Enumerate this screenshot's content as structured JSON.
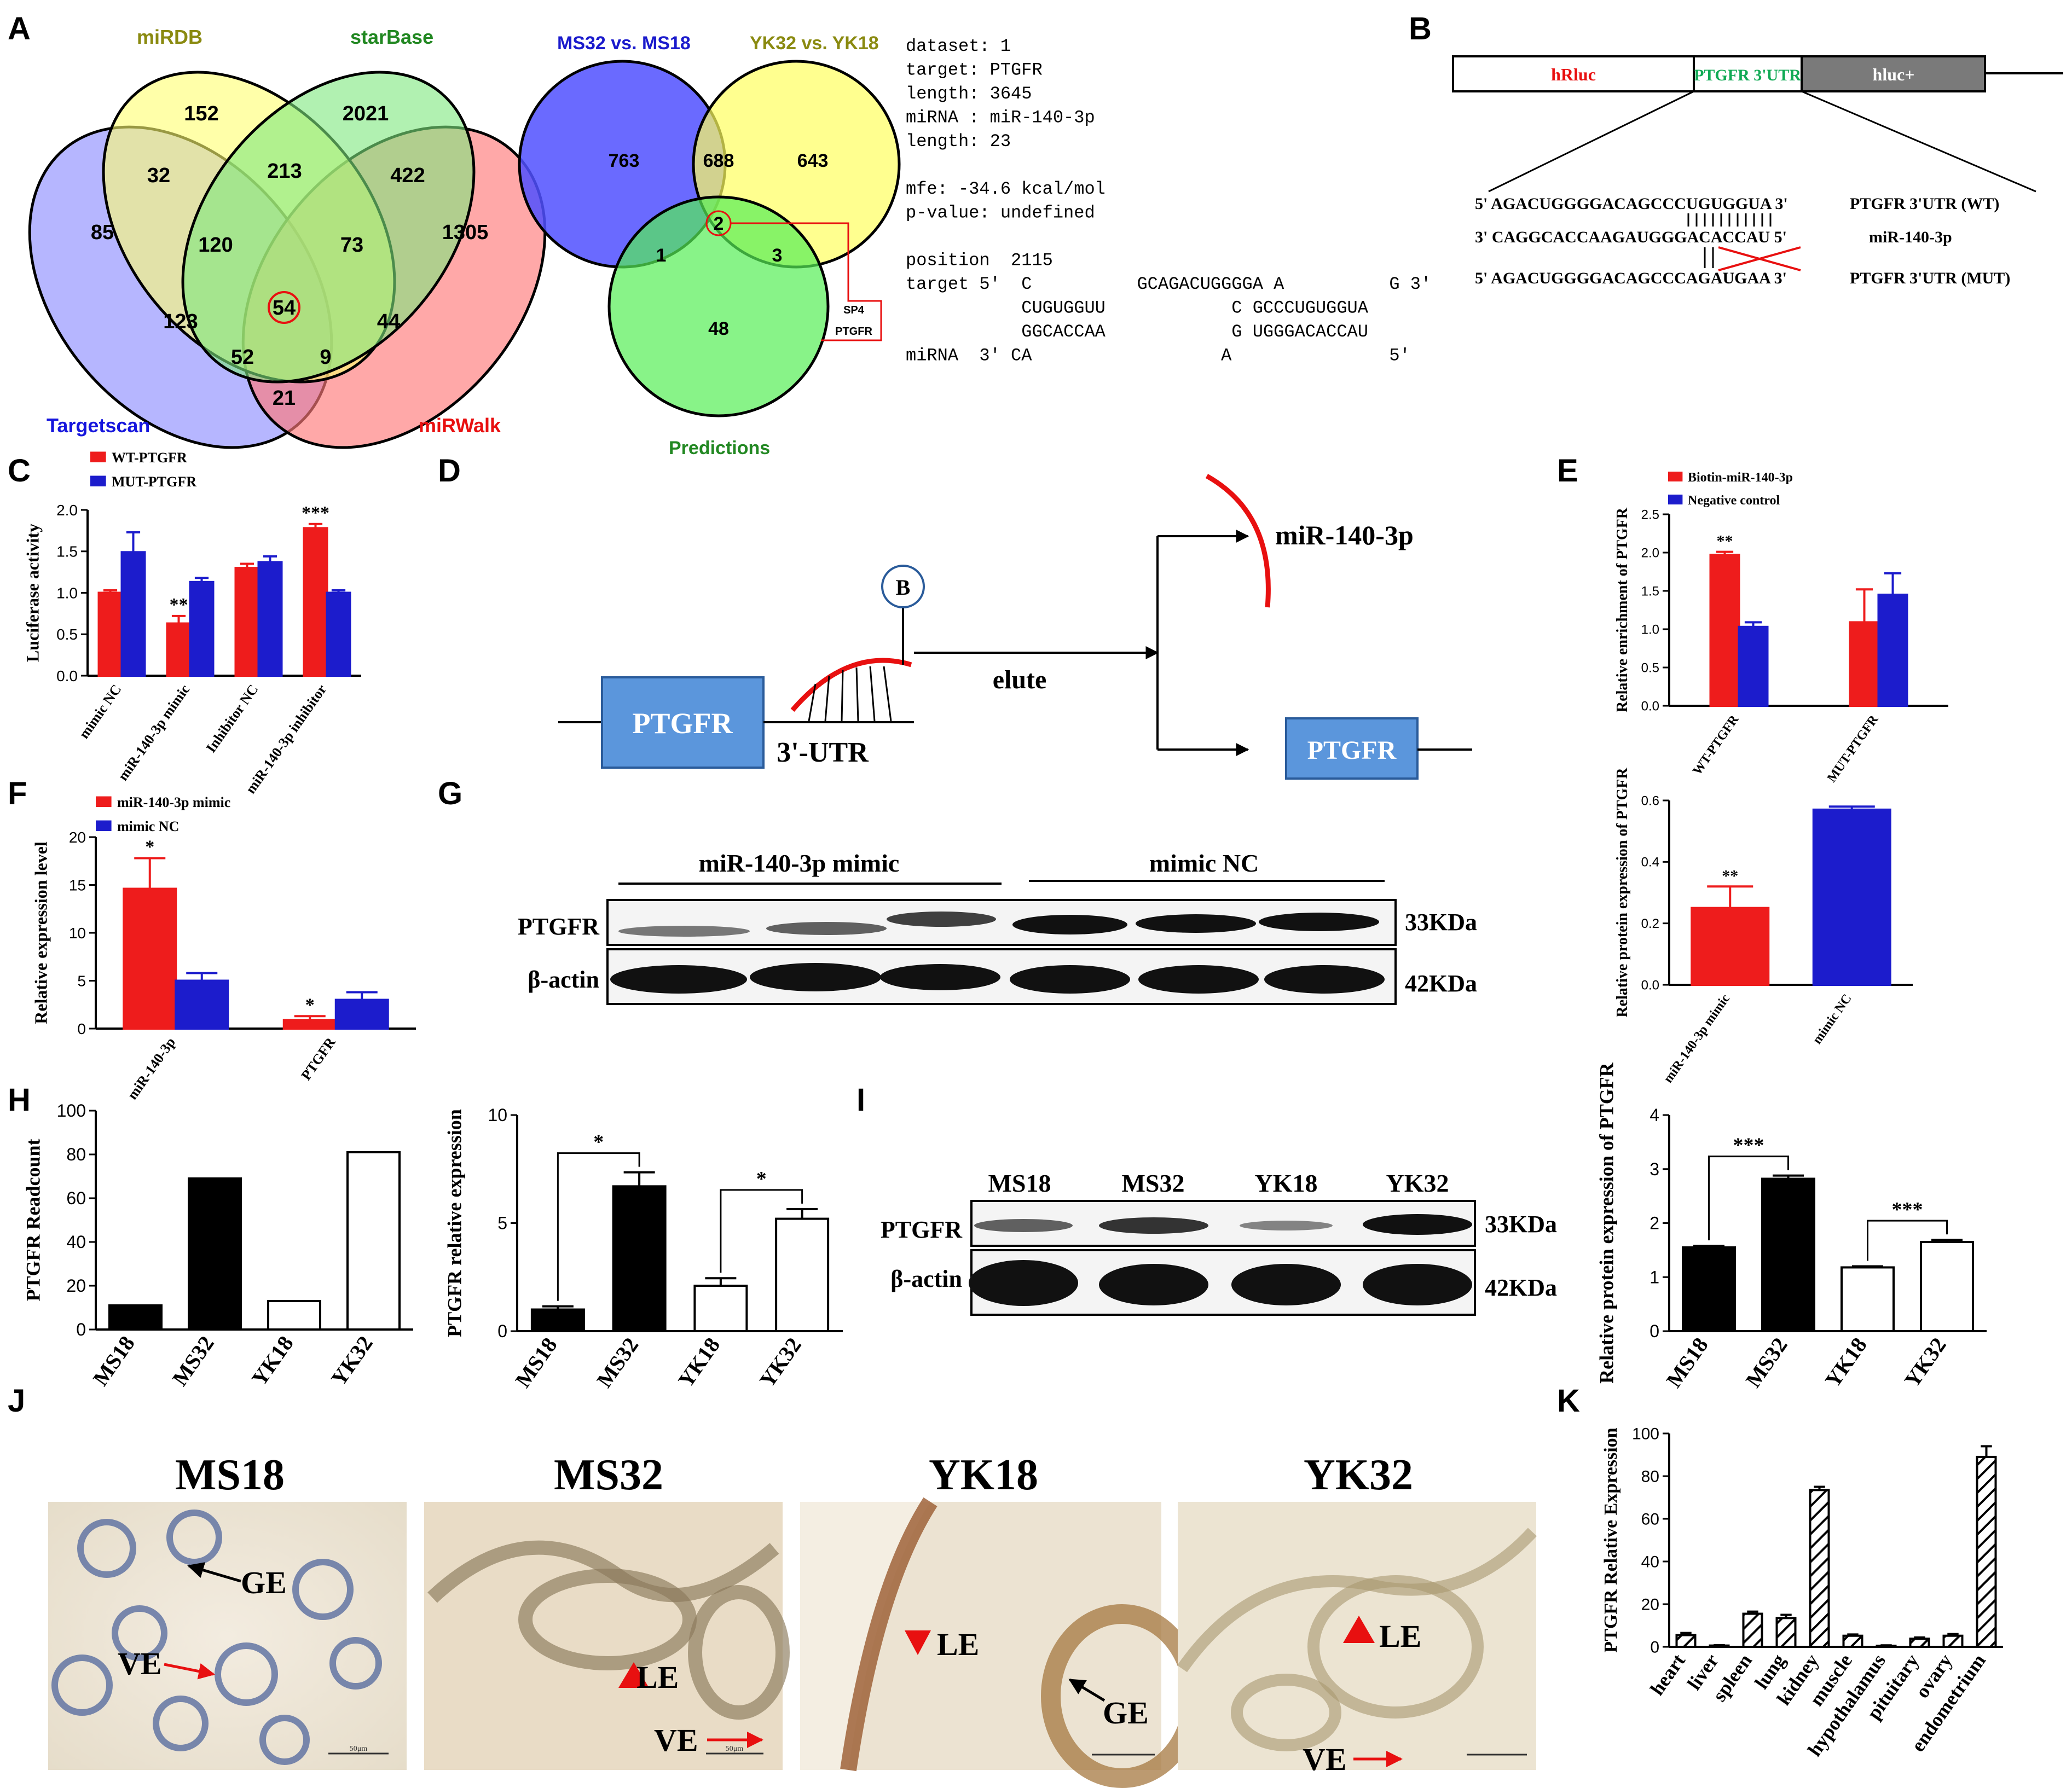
{
  "panels": {
    "A": "A",
    "B": "B",
    "C": "C",
    "D": "D",
    "E": "E",
    "F": "F",
    "G": "G",
    "H": "H",
    "I": "I",
    "J": "J",
    "K": "K"
  },
  "venn4": {
    "sets": [
      "miRDB",
      "starBase",
      "Targetscan",
      "miRWalk"
    ],
    "set_colors": [
      "#ffff99",
      "#99ee99",
      "#9999ff",
      "#ff8888"
    ],
    "counts": {
      "targetscan_only": "85",
      "mirdb_only": "152",
      "starbase_only": "2021",
      "mirwalk_only": "1305",
      "ts_mirdb": "32",
      "mirdb_sb": "213",
      "sb_mw": "422",
      "ts_mirdb_sb": "120",
      "mirdb_sb_mw": "73",
      "ts_sb": "123",
      "all": "54",
      "mirdb_mw": "44",
      "ts_mirdb_mw": "52",
      "ts_sb_mw": "9",
      "ts_mw": "21"
    }
  },
  "venn3": {
    "sets": [
      "MS32 vs. MS18",
      "YK32 vs. YK18",
      "Predictions"
    ],
    "counts": {
      "ms_only": "763",
      "ms_yk": "688",
      "yk_only": "643",
      "ms_pred": "1",
      "all": "2",
      "yk_pred": "3",
      "pred_only": "48"
    },
    "callout": [
      "SP4",
      "PTGFR"
    ]
  },
  "rnahybrid": {
    "lines": [
      "dataset: 1",
      "target: PTGFR",
      "length: 3645",
      "miRNA : miR-140-3p",
      "length: 23",
      "",
      "mfe: -34.6 kcal/mol",
      "p-value: undefined",
      "",
      "position  2115",
      "target 5'  C          GCAGACUGGGGA A          G 3'",
      "           CUGUGGUU            C GCCCUGUGGUA",
      "           GGCACCAA            G UGGGACACCAU",
      "miRNA  3' CA                  A               5'"
    ]
  },
  "construct": {
    "hrluc": "hRluc",
    "utr": "PTGFR 3'UTR",
    "hluc": "hluc+",
    "wt_seq": "5' AGACUGGGGACAGCCCUGUGGUA 3'",
    "wt_label": "PTGFR 3'UTR (WT)",
    "mir_seq": "3' CAGGCACCAAGAUGGGACACCAU 5'",
    "mir_label": "miR-140-3p",
    "mut_seq": "5' AGACUGGGGACAGCCCAGAUGAA 3'",
    "mut_label": "PTGFR 3'UTR (MUT)"
  },
  "chart_data": [
    {
      "panel": "C",
      "type": "bar",
      "ylabel": "Luciferase activity",
      "ylim": [
        0,
        2.0
      ],
      "yticks": [
        "0.0",
        "0.5",
        "1.0",
        "1.5",
        "2.0"
      ],
      "categories": [
        "mimic NC",
        "miR-140-3p mimic",
        "Inhibitor NC",
        "miR-140-3p inhibitor"
      ],
      "series": [
        {
          "name": "WT-PTGFR",
          "color": "#ee1c1c",
          "values": [
            1.0,
            0.63,
            1.3,
            1.78
          ],
          "errors": [
            0.03,
            0.09,
            0.05,
            0.05
          ]
        },
        {
          "name": "MUT-PTGFR",
          "color": "#1c1ccc",
          "values": [
            1.49,
            1.13,
            1.37,
            1.0
          ],
          "errors": [
            0.24,
            0.05,
            0.07,
            0.03
          ]
        }
      ],
      "annotations": [
        "",
        "**",
        "",
        "***"
      ]
    },
    {
      "panel": "E",
      "type": "bar",
      "ylabel": "Relative enrichment of PTGFR",
      "ylim": [
        0,
        2.5
      ],
      "yticks": [
        "0.0",
        "0.5",
        "1.0",
        "1.5",
        "2.0",
        "2.5"
      ],
      "categories": [
        "WT-PTGFR",
        "MUT-PTGFR"
      ],
      "series": [
        {
          "name": "Biotin-miR-140-3p",
          "color": "#ee1c1c",
          "values": [
            1.97,
            1.09
          ],
          "errors": [
            0.04,
            0.43
          ]
        },
        {
          "name": "Negative control",
          "color": "#1c1ccc",
          "values": [
            1.03,
            1.45
          ],
          "errors": [
            0.06,
            0.28
          ]
        }
      ],
      "annotations": [
        "**",
        ""
      ]
    },
    {
      "panel": "F",
      "type": "bar",
      "ylabel": "Relative expression level",
      "ylim": [
        0,
        20
      ],
      "yticks": [
        "0",
        "5",
        "10",
        "15",
        "20"
      ],
      "categories": [
        "miR-140-3p",
        "PTGFR"
      ],
      "series": [
        {
          "name": "miR-140-3p mimic",
          "color": "#ee1c1c",
          "values": [
            14.6,
            0.9
          ],
          "errors": [
            3.2,
            0.4
          ]
        },
        {
          "name": "mimic NC",
          "color": "#1c1ccc",
          "values": [
            5.0,
            3.0
          ],
          "errors": [
            0.8,
            0.8
          ]
        }
      ],
      "annotations": [
        "*",
        "*"
      ]
    },
    {
      "panel": "G-quant",
      "type": "bar",
      "ylabel": "Relative protein expression of PTGFR",
      "ylim": [
        0,
        0.6
      ],
      "yticks": [
        "0.0",
        "0.2",
        "0.4",
        "0.6"
      ],
      "categories": [
        "miR-140-3p mimic",
        "mimic NC"
      ],
      "series": [
        {
          "name": "",
          "color": "",
          "values": [
            0.25,
            0.57
          ],
          "errors": [
            0.07,
            0.01
          ]
        }
      ],
      "bar_colors": [
        "#ee1c1c",
        "#1c1ccc"
      ],
      "annotations": [
        "**",
        ""
      ]
    },
    {
      "panel": "H-readcount",
      "type": "bar",
      "ylabel": "PTGFR Readcount",
      "ylim": [
        0,
        100
      ],
      "yticks": [
        "0",
        "20",
        "40",
        "60",
        "80",
        "100"
      ],
      "categories": [
        "MS18",
        "MS32",
        "YK18",
        "YK32"
      ],
      "series": [
        {
          "name": "",
          "values": [
            11,
            69,
            13,
            81
          ],
          "errors": [
            0,
            0,
            0,
            0
          ]
        }
      ],
      "bar_fills": [
        "#000000",
        "#000000",
        "#ffffff",
        "#ffffff"
      ]
    },
    {
      "panel": "H-qpcr",
      "type": "bar",
      "ylabel": "PTGFR relative expression",
      "ylim": [
        0,
        10
      ],
      "yticks": [
        "0",
        "5",
        "10"
      ],
      "categories": [
        "MS18",
        "MS32",
        "YK18",
        "YK32"
      ],
      "series": [
        {
          "name": "",
          "values": [
            1.0,
            6.7,
            2.1,
            5.2
          ],
          "errors": [
            0.15,
            0.65,
            0.35,
            0.45
          ]
        }
      ],
      "bar_fills": [
        "#000000",
        "#000000",
        "#ffffff",
        "#ffffff"
      ],
      "brackets": [
        {
          "from": 0,
          "to": 1,
          "label": "*"
        },
        {
          "from": 2,
          "to": 3,
          "label": "*"
        }
      ]
    },
    {
      "panel": "I-quant",
      "type": "bar",
      "ylabel": "Relative protein expression of PTGFR",
      "ylim": [
        0,
        4
      ],
      "yticks": [
        "0",
        "1",
        "2",
        "3",
        "4"
      ],
      "categories": [
        "MS18",
        "MS32",
        "YK18",
        "YK32"
      ],
      "series": [
        {
          "name": "",
          "values": [
            1.55,
            2.82,
            1.18,
            1.65
          ],
          "errors": [
            0.03,
            0.06,
            0.02,
            0.04
          ]
        }
      ],
      "bar_fills": [
        "#000000",
        "#000000",
        "#ffffff",
        "#ffffff"
      ],
      "brackets": [
        {
          "from": 0,
          "to": 1,
          "label": "***"
        },
        {
          "from": 2,
          "to": 3,
          "label": "***"
        }
      ]
    },
    {
      "panel": "K",
      "type": "bar",
      "ylabel": "PTGFR Relative Expression",
      "ylim": [
        0,
        100
      ],
      "yticks": [
        "0",
        "20",
        "40",
        "60",
        "80",
        "100"
      ],
      "categories": [
        "heart",
        "liver",
        "spleen",
        "lung",
        "kidney",
        "muscle",
        "hypothalamus",
        "pituitary",
        "ovary",
        "endometrium"
      ],
      "series": [
        {
          "name": "",
          "values": [
            5.5,
            0.6,
            15.5,
            13.5,
            73.5,
            5.2,
            0.5,
            3.8,
            5.2,
            89
          ],
          "errors": [
            1,
            0.2,
            1,
            1.5,
            1.5,
            0.6,
            0.2,
            0.6,
            0.8,
            5
          ]
        }
      ],
      "pattern": "hatched"
    }
  ],
  "pulldown": {
    "gene": "PTGFR",
    "utr": "3'-UTR",
    "biotin": "B",
    "elute": "elute",
    "mir": "miR-140-3p",
    "gene2": "PTGFR"
  },
  "western_G": {
    "group1": "miR-140-3p mimic",
    "group2": "mimic NC",
    "rows": [
      "PTGFR",
      "β-actin"
    ],
    "sizes": [
      "33KDa",
      "42KDa"
    ]
  },
  "western_I": {
    "lanes": [
      "MS18",
      "MS32",
      "YK18",
      "YK32"
    ],
    "rows": [
      "PTGFR",
      "β-actin"
    ],
    "sizes": [
      "33KDa",
      "42KDa"
    ]
  },
  "ihc": [
    {
      "title": "MS18",
      "labels": [
        "GE",
        "VE"
      ]
    },
    {
      "title": "MS32",
      "labels": [
        "LE",
        "VE"
      ]
    },
    {
      "title": "YK18",
      "labels": [
        "LE",
        "GE"
      ]
    },
    {
      "title": "YK32",
      "labels": [
        "LE",
        "VE"
      ]
    }
  ],
  "scale_bar": "50μm"
}
